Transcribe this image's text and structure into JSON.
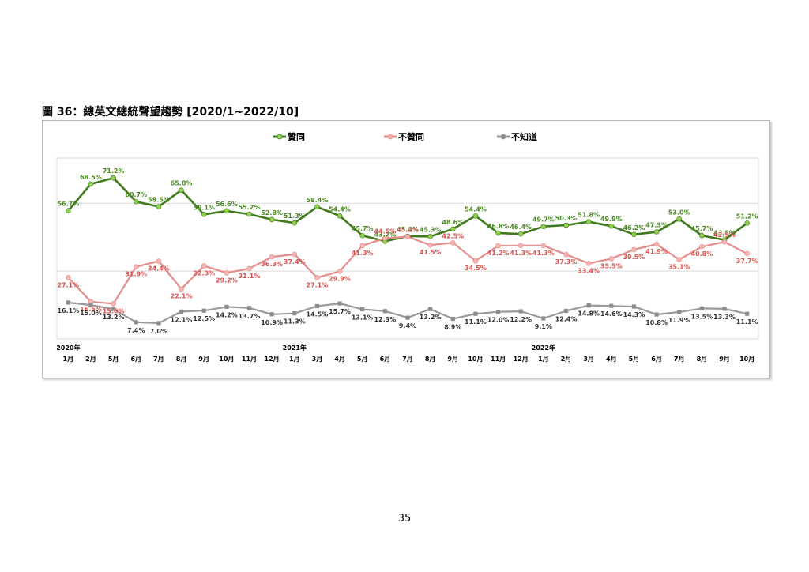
{
  "figure_title": "圖 36：總英文總統聲望趨勢 [2020/1~2022/10]",
  "page_number": "35",
  "chart_data": {
    "type": "line",
    "categories": [
      "1月",
      "2月",
      "5月",
      "6月",
      "7月",
      "8月",
      "9月",
      "10月",
      "11月",
      "12月",
      "1月",
      "3月",
      "4月",
      "5月",
      "6月",
      "7月",
      "8月",
      "9月",
      "10月",
      "11月",
      "12月",
      "1月",
      "2月",
      "3月",
      "4月",
      "5月",
      "6月",
      "7月",
      "8月",
      "9月",
      "10月"
    ],
    "year_labels": [
      {
        "index": 0,
        "label": "2020年"
      },
      {
        "index": 10,
        "label": "2021年"
      },
      {
        "index": 21,
        "label": "2022年"
      }
    ],
    "series": [
      {
        "name": "贊同",
        "color": "#3f7a1c",
        "marker_color": "#92d050",
        "label_color": "#4a8a22",
        "values": [
          56.7,
          68.5,
          71.2,
          60.7,
          58.5,
          65.8,
          55.1,
          56.6,
          55.2,
          52.8,
          51.3,
          58.4,
          54.4,
          45.7,
          43.2,
          45.4,
          45.3,
          48.6,
          54.4,
          46.8,
          46.4,
          49.7,
          50.3,
          51.8,
          49.9,
          46.2,
          47.3,
          53.0,
          45.7,
          43.8,
          51.2
        ],
        "labels": [
          "56.7%",
          "68.5%",
          "71.2%",
          "60.7%",
          "58.5%",
          "65.8%",
          "55.1%",
          "56.6%",
          "55.2%",
          "52.8%",
          "51.3%",
          "58.4%",
          "54.4%",
          "45.7%",
          "43.2%",
          "45.4%",
          "45.3%",
          "48.6%",
          "54.4%",
          "46.8%",
          "46.4%",
          "49.7%",
          "50.3%",
          "51.8%",
          "49.9%",
          "46.2%",
          "47.3%",
          "53.0%",
          "45.7%",
          "43.8%",
          "51.2%"
        ]
      },
      {
        "name": "不贊同",
        "color": "#e68c8c",
        "marker_color": "#f4b4b4",
        "label_color": "#d9534f",
        "values": [
          27.1,
          16.5,
          15.6,
          31.9,
          34.4,
          22.1,
          32.3,
          29.2,
          31.1,
          36.3,
          37.4,
          27.1,
          29.9,
          41.3,
          44.5,
          45.2,
          41.5,
          42.5,
          34.5,
          41.2,
          41.3,
          41.3,
          37.3,
          33.4,
          35.5,
          39.5,
          41.9,
          35.1,
          40.8,
          42.9,
          37.7
        ],
        "labels": [
          "27.1%",
          "16.5%",
          "15.6%",
          "31.9%",
          "34.4%",
          "22.1%",
          "32.3%",
          "29.2%",
          "31.1%",
          "36.3%",
          "37.4%",
          "27.1%",
          "29.9%",
          "41.3%",
          "44.5%",
          "45.2%",
          "41.5%",
          "42.5%",
          "34.5%",
          "41.2%",
          "41.3%",
          "41.3%",
          "37.3%",
          "33.4%",
          "35.5%",
          "39.5%",
          "41.9%",
          "35.1%",
          "40.8%",
          "42.9%",
          "37.7%"
        ]
      },
      {
        "name": "不知道",
        "color": "#9a9a9a",
        "marker_color": "#8c8c8c",
        "label_color": "#333333",
        "values": [
          16.1,
          15.0,
          13.2,
          7.4,
          7.0,
          12.1,
          12.5,
          14.2,
          13.7,
          10.9,
          11.3,
          14.5,
          15.7,
          13.1,
          12.3,
          9.4,
          13.2,
          8.9,
          11.1,
          12.0,
          12.2,
          9.1,
          12.4,
          14.8,
          14.6,
          14.3,
          10.8,
          11.9,
          13.5,
          13.3,
          11.1
        ],
        "labels": [
          "16.1%",
          "15.0%",
          "13.2%",
          "7.4%",
          "7.0%",
          "12.1%",
          "12.5%",
          "14.2%",
          "13.7%",
          "10.9%",
          "11.3%",
          "14.5%",
          "15.7%",
          "13.1%",
          "12.3%",
          "9.4%",
          "13.2%",
          "8.9%",
          "11.1%",
          "12.0%",
          "12.2%",
          "9.1%",
          "12.4%",
          "14.8%",
          "14.6%",
          "14.3%",
          "10.8%",
          "11.9%",
          "13.5%",
          "13.3%",
          "11.1%"
        ]
      }
    ],
    "ylim": [
      0,
      80
    ],
    "gridlines": [
      30,
      60
    ],
    "grid": true,
    "legend_position": "top-center"
  }
}
